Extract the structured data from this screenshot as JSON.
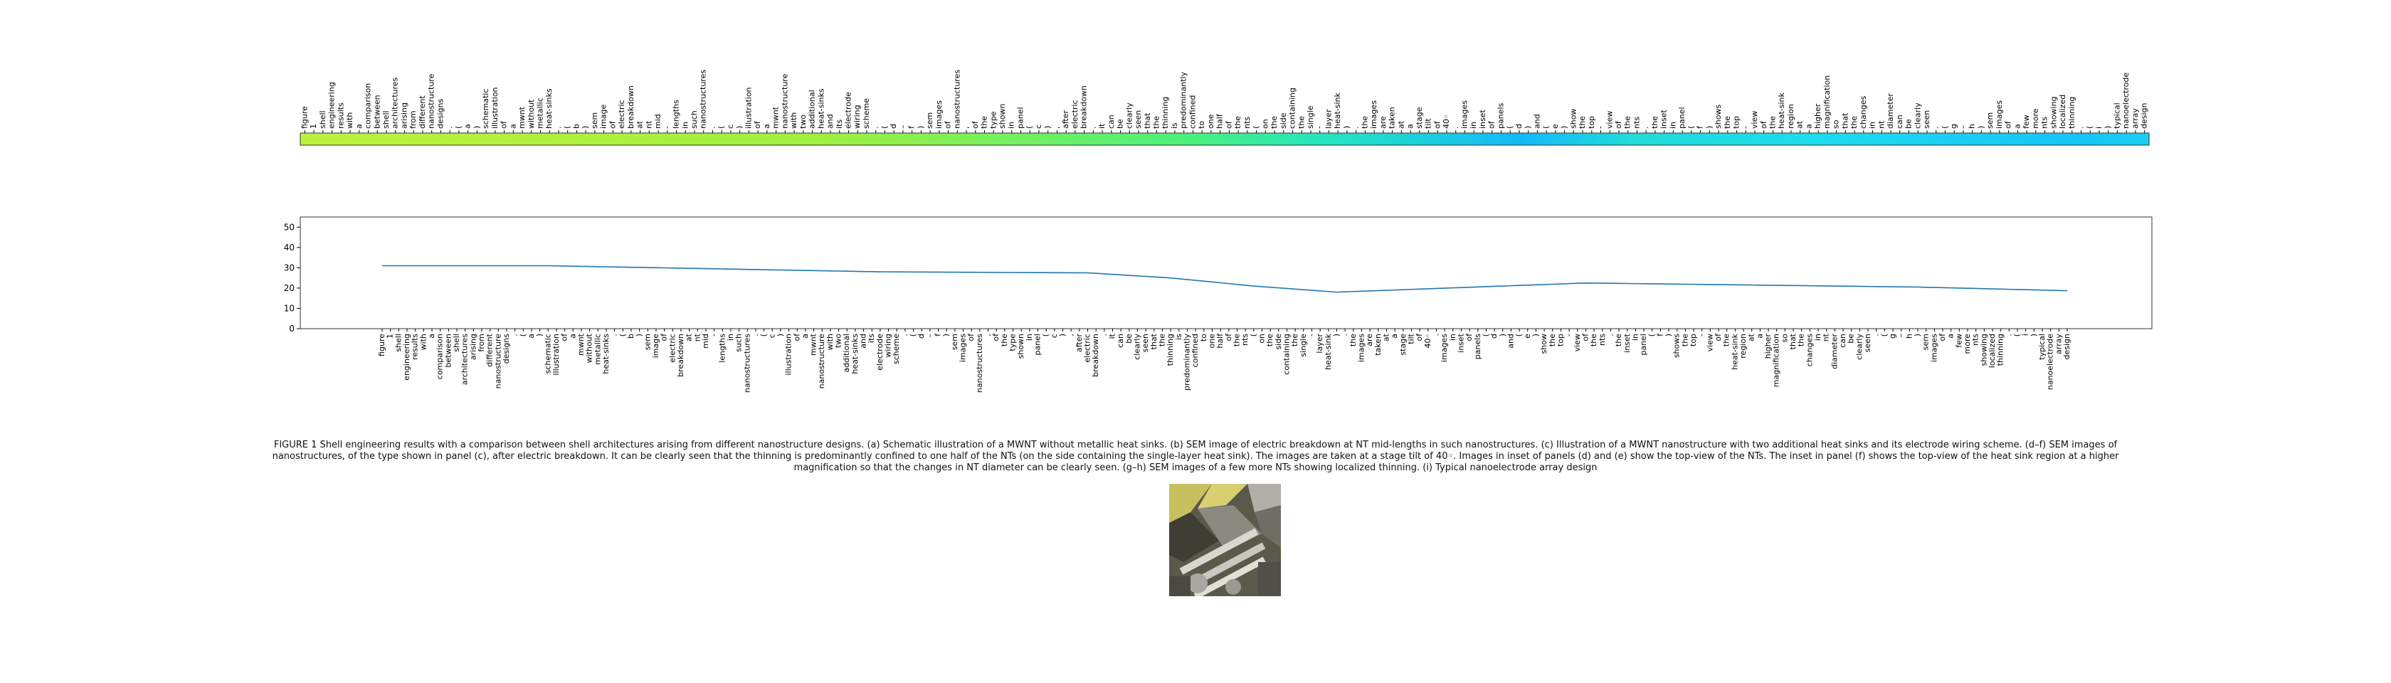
{
  "caption": "FIGURE 1 Shell engineering results with a comparison between shell architectures arising from different nanostructure designs. (a) Schematic illustration of a MWNT without metallic heat sinks. (b) SEM image of electric breakdown at NT mid-lengths in such nanostructures. (c) Illustration of a MWNT nanostructure with two additional heat sinks and its electrode wiring scheme. (d–f) SEM images of nanostructures, of the type shown in panel (c), after electric breakdown. It can be clearly seen that the thinning is predominantly confined to one half of the NTs (on the side containing the single-layer heat sink). The images are taken at a stage tilt of 40◦. Images in inset of panels (d) and (e) show the top-view of the NTs. The inset in panel (f) shows the top-view of the heat sink region at a higher magnification so that the changes in NT diameter can be clearly seen. (g–h) SEM images of a few more NTs showing localized thinning. (i) Typical nanoelectrode array design",
  "colors": {
    "line": "#1f77b4"
  },
  "chart_data": [
    {
      "type": "heatmap",
      "tokens": [
        "figure",
        "1",
        "shell",
        "engineering",
        "results",
        "with",
        "a",
        "comparison",
        "between",
        "shell",
        "architectures",
        "arising",
        "from",
        "different",
        "nanostructure",
        "designs",
        ".",
        "(",
        "a",
        ")",
        "schematic",
        "illustration",
        "of",
        "a",
        "mwnt",
        "without",
        "metallic",
        "heat-sinks",
        ".",
        "(",
        "b",
        ")",
        "sem",
        "image",
        "of",
        "electric",
        "breakdown",
        "at",
        "nt",
        "mid",
        "-",
        "lengths",
        "in",
        "such",
        "nanostructures",
        ".",
        "(",
        "c",
        ")",
        "illustration",
        "of",
        "a",
        "mwnt",
        "nanostructure",
        "with",
        "two",
        "additional",
        "heat-sinks",
        "and",
        "its",
        "electrode",
        "wiring",
        "scheme",
        ".",
        "(",
        "d",
        "–",
        "f",
        ")",
        "sem",
        "images",
        "of",
        "nanostructures",
        ",",
        "of",
        "the",
        "type",
        "shown",
        "in",
        "panel",
        "(",
        "c",
        ")",
        ",",
        "after",
        "electric",
        "breakdown",
        ".",
        "it",
        "can",
        "be",
        "clearly",
        "seen",
        "that",
        "the",
        "thinning",
        "is",
        "predominantly",
        "confined",
        "to",
        "one",
        "half",
        "of",
        "the",
        "nts",
        "(",
        "on",
        "the",
        "side",
        "containing",
        "the",
        "single",
        "-",
        "layer",
        "heat-sink",
        ")",
        ".",
        "the",
        "images",
        "are",
        "taken",
        "at",
        "a",
        "stage",
        "tilt",
        "of",
        "40◦",
        ".",
        "images",
        "in",
        "inset",
        "of",
        "panels",
        "(",
        "d",
        ")",
        "and",
        "(",
        "e",
        ")",
        "show",
        "the",
        "top",
        "-",
        "view",
        "of",
        "the",
        "nts",
        ".",
        "the",
        "inset",
        "in",
        "panel",
        "(",
        "f",
        ")",
        "shows",
        "the",
        "top",
        "-",
        "view",
        "of",
        "the",
        "heat-sink",
        "region",
        "at",
        "a",
        "higher",
        "magnification",
        "so",
        "that",
        "the",
        "changes",
        "in",
        "nt",
        "diameter",
        "can",
        "be",
        "clearly",
        "seen",
        ".",
        "(",
        "g",
        "–",
        "h",
        ")",
        "sem",
        "images",
        "of",
        "a",
        "few",
        "more",
        "nts",
        "showing",
        "localized",
        "thinning",
        ".",
        "(",
        "i",
        ")",
        "typical",
        "nanoelectrode",
        "array",
        "design"
      ]
    },
    {
      "type": "line",
      "x_tokens": [
        "figure",
        "1",
        "shell",
        "engineering",
        "results",
        "with",
        "a",
        "comparison",
        "between",
        "shell",
        "architectures",
        "arising",
        "from",
        "different",
        "nanostructure",
        "designs",
        ".",
        "(",
        "a",
        ")",
        "schematic",
        "illustration",
        "of",
        "a",
        "mwnt",
        "without",
        "metallic",
        "heat-sinks",
        ".",
        "(",
        "b",
        ")",
        "sem",
        "image",
        "of",
        "electric",
        "breakdown",
        "at",
        "nt",
        "mid",
        "-",
        "lengths",
        "in",
        "such",
        "nanostructures",
        ".",
        "(",
        "c",
        ")",
        "illustration",
        "of",
        "a",
        "mwnt",
        "nanostructure",
        "with",
        "two",
        "additional",
        "heat-sinks",
        "and",
        "its",
        "electrode",
        "wiring",
        "scheme",
        ".",
        "(",
        "d",
        "–",
        "f",
        ")",
        "sem",
        "images",
        "of",
        "nanostructures",
        ",",
        "of",
        "the",
        "type",
        "shown",
        "in",
        "panel",
        "(",
        "c",
        ")",
        ",",
        "after",
        "electric",
        "breakdown",
        ".",
        "it",
        "can",
        "be",
        "clearly",
        "seen",
        "that",
        "the",
        "thinning",
        "is",
        "predominantly",
        "confined",
        "to",
        "one",
        "half",
        "of",
        "the",
        "nts",
        "(",
        "on",
        "the",
        "side",
        "containing",
        "the",
        "single",
        "-",
        "layer",
        "heat-sink",
        ")",
        ".",
        "the",
        "images",
        "are",
        "taken",
        "at",
        "a",
        "stage",
        "tilt",
        "of",
        "40◦",
        ".",
        "images",
        "in",
        "inset",
        "of",
        "panels",
        "(",
        "d",
        ")",
        "and",
        "(",
        "e",
        ")",
        "show",
        "the",
        "top",
        "-",
        "view",
        "of",
        "the",
        "nts",
        ".",
        "the",
        "inset",
        "in",
        "panel",
        "(",
        "f",
        ")",
        "shows",
        "the",
        "top",
        "-",
        "view",
        "of",
        "the",
        "heat-sink",
        "region",
        "at",
        "a",
        "higher",
        "magnification",
        "so",
        "that",
        "the",
        "changes",
        "in",
        "nt",
        "diameter",
        "can",
        "be",
        "clearly",
        "seen",
        ".",
        "(",
        "g",
        "–",
        "h",
        ")",
        "sem",
        "images",
        "of",
        "a",
        "few",
        "more",
        "nts",
        "showing",
        "localized",
        "thinning",
        ".",
        "(",
        "i",
        ")",
        "typical",
        "nanoelectrode",
        "array",
        "design"
      ],
      "ylim": [
        0,
        55
      ],
      "yticks": [
        0,
        10,
        20,
        30,
        40,
        50
      ],
      "keypoints": [
        [
          0,
          31
        ],
        [
          20,
          31
        ],
        [
          40,
          29.5
        ],
        [
          60,
          28
        ],
        [
          85,
          27.5
        ],
        [
          95,
          25
        ],
        [
          105,
          21
        ],
        [
          115,
          18
        ],
        [
          125,
          19.5
        ],
        [
          145,
          22.5
        ],
        [
          165,
          21.5
        ],
        [
          185,
          20.5
        ],
        [
          205,
          18.5
        ],
        [
          219,
          18
        ]
      ]
    }
  ]
}
